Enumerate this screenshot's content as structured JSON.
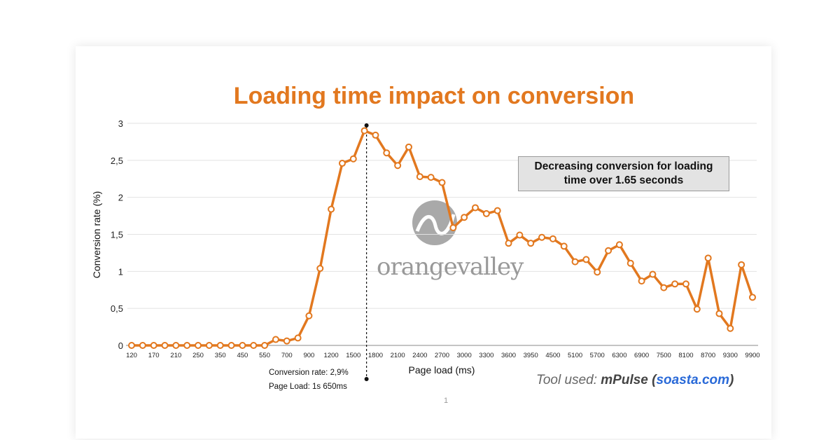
{
  "chart_data": {
    "type": "line",
    "title": "Loading time impact on conversion",
    "xlabel": "Page load (ms)",
    "ylabel": "Conversion rate (%)",
    "ylim": [
      0,
      3
    ],
    "y_ticks": [
      "0",
      "0,5",
      "1",
      "1,5",
      "2",
      "2,5",
      "3"
    ],
    "grid": true,
    "series_color": "#E2781F",
    "x_tick_labels": [
      "120",
      "170",
      "210",
      "250",
      "350",
      "450",
      "550",
      "700",
      "900",
      "1200",
      "1500",
      "1800",
      "2100",
      "2400",
      "2700",
      "3000",
      "3300",
      "3600",
      "3950",
      "4500",
      "5100",
      "5700",
      "6300",
      "6900",
      "7500",
      "8100",
      "8700",
      "9300",
      "9900"
    ],
    "values": [
      0,
      0,
      0,
      0,
      0,
      0,
      0,
      0,
      0,
      0,
      0,
      0,
      0,
      0.08,
      0.06,
      0.1,
      0.4,
      1.04,
      1.84,
      2.46,
      2.52,
      2.9,
      2.84,
      2.6,
      2.43,
      2.68,
      2.28,
      2.27,
      2.2,
      1.59,
      1.73,
      1.86,
      1.78,
      1.82,
      1.38,
      1.49,
      1.38,
      1.46,
      1.44,
      1.34,
      1.13,
      1.16,
      0.99,
      1.28,
      1.36,
      1.11,
      0.87,
      0.96,
      0.78,
      0.83,
      0.83,
      0.49,
      1.18,
      0.43,
      0.23,
      1.09,
      0.65
    ],
    "marker_index": 21
  },
  "callout": {
    "line1": "Decreasing conversion for loading",
    "line2": "time over 1.65 seconds"
  },
  "annotation": {
    "rate": "Conversion rate: 2,9%",
    "load": "Page Load: 1s 650ms"
  },
  "footer": {
    "tool_prefix": "Tool used: ",
    "tool_name": "mPulse",
    "paren_open": " (",
    "site": "soasta.com",
    "paren_close": ")",
    "page_number": "1"
  },
  "watermark": {
    "text": "orangevalley"
  }
}
